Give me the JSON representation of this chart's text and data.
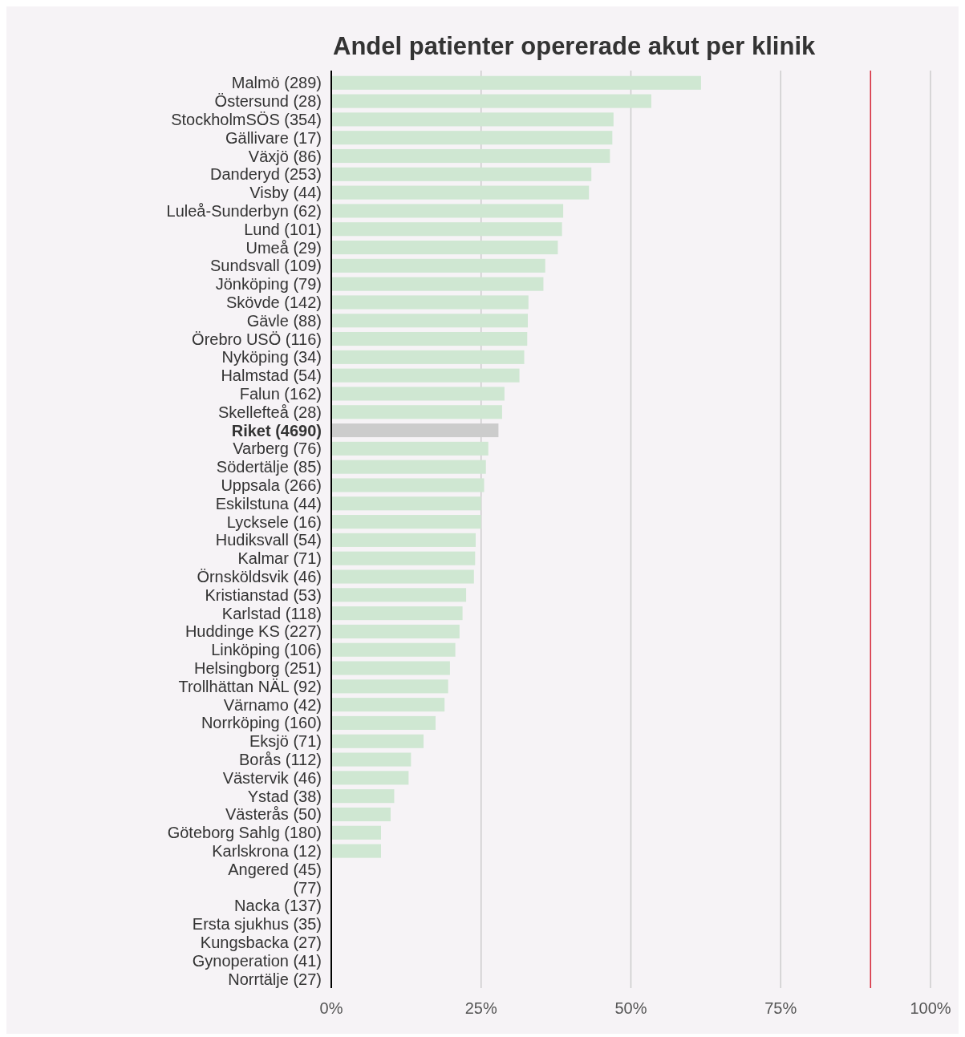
{
  "chart_data": {
    "type": "bar",
    "orientation": "horizontal",
    "title": "Andel patienter opererade akut per klinik",
    "categories": [
      "Malmö (289)",
      "Östersund (28)",
      "StockholmSÖS (354)",
      "Gällivare (17)",
      "Växjö (86)",
      "Danderyd (253)",
      "Visby (44)",
      "Luleå-Sunderbyn (62)",
      "Lund (101)",
      "Umeå (29)",
      "Sundsvall (109)",
      "Jönköping (79)",
      "Skövde (142)",
      "Gävle (88)",
      "Örebro USÖ (116)",
      "Nyköping (34)",
      "Halmstad (54)",
      "Falun (162)",
      "Skellefteå (28)",
      "Riket (4690)",
      "Varberg (76)",
      "Södertälje (85)",
      "Uppsala (266)",
      "Eskilstuna (44)",
      "Lycksele (16)",
      "Hudiksvall (54)",
      "Kalmar (71)",
      "Örnsköldsvik (46)",
      "Kristianstad (53)",
      "Karlstad (118)",
      "Huddinge KS (227)",
      "Linköping (106)",
      "Helsingborg (251)",
      "Trollhättan NÄL (92)",
      "Värnamo (42)",
      "Norrköping (160)",
      "Eksjö (71)",
      "Borås (112)",
      "Västervik (46)",
      "Ystad (38)",
      "Västerås (50)",
      "Göteborg Sahlg (180)",
      "Karlskrona (12)",
      "Angered (45)",
      "(77)",
      "Nacka (137)",
      "Ersta sjukhus (35)",
      "Kungsbacka (27)",
      "Gynoperation (41)",
      "Norrtälje (27)"
    ],
    "values": [
      61.7,
      53.4,
      47.1,
      46.9,
      46.5,
      43.4,
      43.0,
      38.7,
      38.5,
      37.8,
      35.7,
      35.4,
      32.9,
      32.8,
      32.7,
      32.2,
      31.4,
      28.9,
      28.5,
      27.9,
      26.2,
      25.8,
      25.5,
      25.0,
      25.0,
      24.1,
      24.0,
      23.8,
      22.5,
      21.9,
      21.4,
      20.7,
      19.8,
      19.5,
      18.9,
      17.4,
      15.4,
      13.3,
      12.9,
      10.5,
      9.9,
      8.3,
      8.3,
      null,
      null,
      null,
      null,
      null,
      null,
      null
    ],
    "colors": [
      "#cfe7d2",
      "#cfe7d2",
      "#cfe7d2",
      "#cfe7d2",
      "#cfe7d2",
      "#cfe7d2",
      "#cfe7d2",
      "#cfe7d2",
      "#cfe7d2",
      "#cfe7d2",
      "#cfe7d2",
      "#cfe7d2",
      "#cfe7d2",
      "#cfe7d2",
      "#cfe7d2",
      "#cfe7d2",
      "#cfe7d2",
      "#cfe7d2",
      "#cfe7d2",
      "#cccccc",
      "#cfe7d2",
      "#cfe7d2",
      "#cfe7d2",
      "#cfe7d2",
      "#cfe7d2",
      "#cfe7d2",
      "#cfe7d2",
      "#cfe7d2",
      "#cfe7d2",
      "#cfe7d2",
      "#cfe7d2",
      "#cfe7d2",
      "#cfe7d2",
      "#cfe7d2",
      "#cfe7d2",
      "#cfe7d2",
      "#cfe7d2",
      "#cfe7d2",
      "#cfe7d2",
      "#cfe7d2",
      "#cfe7d2",
      "#cfe7d2",
      "#cfe7d2",
      "#cfe7d2",
      "#cfe7d2",
      "#cfe7d2",
      "#cfe7d2",
      "#cfe7d2",
      "#cfe7d2",
      "#cfe7d2"
    ],
    "xlim": [
      0,
      100
    ],
    "xticks": [
      {
        "value": 0,
        "label": "0%"
      },
      {
        "value": 25,
        "label": "25%"
      },
      {
        "value": 50,
        "label": "50%"
      },
      {
        "value": 75,
        "label": "75%"
      },
      {
        "value": 100,
        "label": "100%"
      }
    ],
    "grid": "x",
    "ref_lines": [
      {
        "axis": "x",
        "value": 90,
        "color": "#d62738"
      }
    ]
  }
}
